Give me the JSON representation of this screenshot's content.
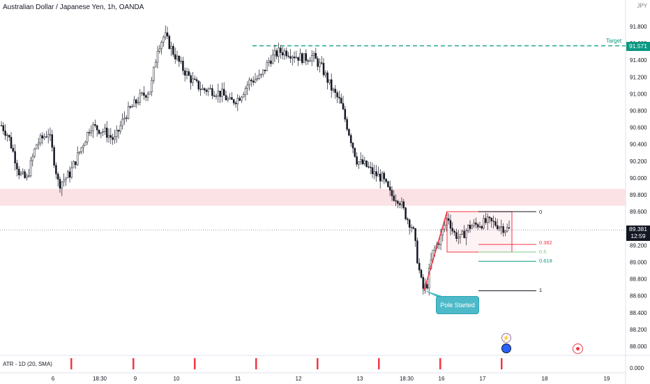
{
  "header": {
    "title": "Australian Dollar / Japanese Yen, 1h, OANDA",
    "currency": "JPY"
  },
  "indicator": {
    "label": "ATR - 1D (20, SMA)",
    "axis_label": "0.000"
  },
  "price_tags": {
    "target_label": "Target",
    "target_value": "91.571",
    "current_price": "89.381",
    "countdown": "12:59"
  },
  "annotations": {
    "callout": "Pole Started",
    "fib_levels": [
      {
        "label": "0",
        "value": 89.6
      },
      {
        "label": "0.382",
        "value": 89.21
      },
      {
        "label": "0.5",
        "value": 89.12
      },
      {
        "label": "0.618",
        "value": 89.01
      },
      {
        "label": "1",
        "value": 88.66
      }
    ],
    "target_level": 91.571,
    "support_zone": [
      89.67,
      89.87
    ]
  },
  "icons": {
    "flash": "lightning-icon",
    "event": "calendar-event-icon",
    "record": "record-icon"
  },
  "colors": {
    "up": "#089981",
    "down": "#131722",
    "accent_red": "#f23645",
    "target_green": "#089981",
    "zone": "#fbe2e4"
  },
  "chart_data": {
    "type": "candlestick",
    "title": "Australian Dollar / Japanese Yen, 1h, OANDA",
    "ylabel": "JPY",
    "ylim": [
      87.92,
      92.0
    ],
    "y_ticks": [
      "91.800",
      "91.600",
      "91.400",
      "91.200",
      "91.000",
      "90.800",
      "90.600",
      "90.400",
      "90.200",
      "90.000",
      "89.800",
      "89.600",
      "89.400",
      "89.200",
      "89.000",
      "88.800",
      "88.600",
      "88.400",
      "88.200",
      "88.000"
    ],
    "x_ticks": [
      "6",
      "18:30",
      "9",
      "10",
      "11",
      "12",
      "13",
      "18:30",
      "16",
      "17",
      "18",
      "19"
    ],
    "price_path": [
      [
        0,
        90.65
      ],
      [
        12,
        90.5
      ],
      [
        28,
        90.05
      ],
      [
        38,
        89.98
      ],
      [
        52,
        90.4
      ],
      [
        70,
        90.55
      ],
      [
        84,
        89.92
      ],
      [
        100,
        90.05
      ],
      [
        116,
        90.35
      ],
      [
        130,
        90.62
      ],
      [
        150,
        90.55
      ],
      [
        164,
        90.45
      ],
      [
        180,
        90.75
      ],
      [
        200,
        90.95
      ],
      [
        216,
        91.05
      ],
      [
        226,
        91.55
      ],
      [
        236,
        91.7
      ],
      [
        248,
        91.5
      ],
      [
        262,
        91.3
      ],
      [
        276,
        91.15
      ],
      [
        290,
        91.05
      ],
      [
        300,
        91.05
      ],
      [
        318,
        91.0
      ],
      [
        330,
        90.9
      ],
      [
        342,
        90.95
      ],
      [
        358,
        91.15
      ],
      [
        374,
        91.2
      ],
      [
        386,
        91.4
      ],
      [
        400,
        91.5
      ],
      [
        412,
        91.5
      ],
      [
        424,
        91.45
      ],
      [
        436,
        91.42
      ],
      [
        448,
        91.45
      ],
      [
        462,
        91.3
      ],
      [
        476,
        91.05
      ],
      [
        488,
        90.9
      ],
      [
        500,
        90.55
      ],
      [
        512,
        90.2
      ],
      [
        524,
        90.15
      ],
      [
        536,
        90.05
      ],
      [
        548,
        90.0
      ],
      [
        560,
        89.8
      ],
      [
        572,
        89.75
      ],
      [
        582,
        89.55
      ],
      [
        592,
        89.4
      ],
      [
        600,
        88.95
      ],
      [
        606,
        88.68
      ],
      [
        612,
        88.72
      ],
      [
        620,
        89.1
      ],
      [
        632,
        89.3
      ],
      [
        642,
        89.55
      ],
      [
        650,
        89.35
      ],
      [
        660,
        89.28
      ],
      [
        672,
        89.42
      ],
      [
        686,
        89.45
      ],
      [
        700,
        89.48
      ],
      [
        712,
        89.45
      ],
      [
        724,
        89.4
      ],
      [
        732,
        89.38
      ]
    ],
    "atr_markers_x": [
      "7",
      "9",
      "10",
      "11",
      "12",
      "13",
      "16",
      "17"
    ]
  }
}
